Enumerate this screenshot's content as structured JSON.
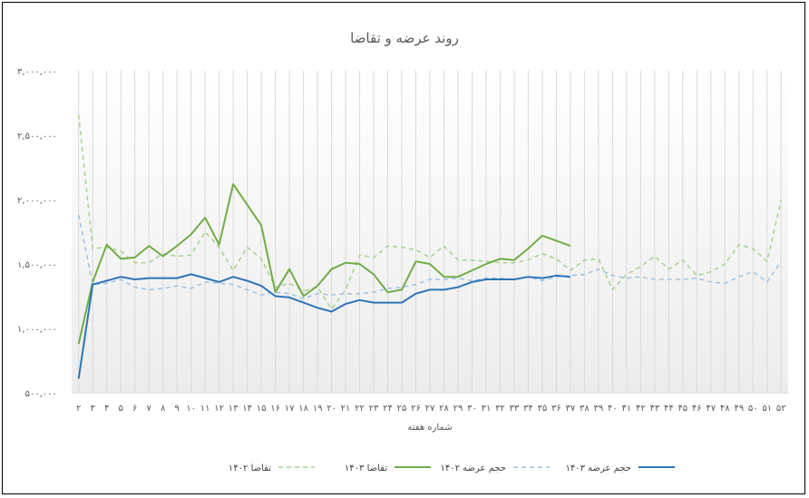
{
  "chart_data": {
    "type": "line",
    "title": "روند عرضه و تقاضا",
    "xlabel": "شماره هفته",
    "ylabel": "",
    "ylim": [
      500000,
      3000000
    ],
    "y_ticks": [
      "۵۰۰,۰۰۰",
      "۱,۰۰۰,۰۰۰",
      "۱,۵۰۰,۰۰۰",
      "۲,۰۰۰,۰۰۰",
      "۲,۵۰۰,۰۰۰",
      "۳,۰۰۰,۰۰۰"
    ],
    "y_tick_values": [
      500000,
      1000000,
      1500000,
      2000000,
      2500000,
      3000000
    ],
    "x": [
      "۲",
      "۳",
      "۴",
      "۵",
      "۶",
      "۷",
      "۸",
      "۹",
      "۱۰",
      "۱۱",
      "۱۲",
      "۱۳",
      "۱۴",
      "۱۵",
      "۱۶",
      "۱۷",
      "۱۸",
      "۱۹",
      "۲۰",
      "۲۱",
      "۲۲",
      "۲۳",
      "۲۴",
      "۲۵",
      "۲۶",
      "۲۷",
      "۲۸",
      "۲۹",
      "۳۰",
      "۳۱",
      "۳۲",
      "۳۳",
      "۳۴",
      "۳۵",
      "۳۶",
      "۳۷",
      "۳۸",
      "۳۹",
      "۴۰",
      "۴۱",
      "۴۲",
      "۴۳",
      "۴۴",
      "۴۵",
      "۴۶",
      "۴۷",
      "۴۸",
      "۴۹",
      "۵۰",
      "۵۱",
      "۵۲"
    ],
    "grid": "vertical",
    "legend_position": "bottom",
    "series": [
      {
        "name": "تقاضا ۱۴۰۲",
        "color": "#A9D18E",
        "dash": "dashed",
        "values": [
          2660000,
          1620000,
          1630000,
          1600000,
          1510000,
          1510000,
          1580000,
          1560000,
          1570000,
          1750000,
          1630000,
          1450000,
          1630000,
          1540000,
          1320000,
          1350000,
          1290000,
          1320000,
          1150000,
          1300000,
          1570000,
          1550000,
          1640000,
          1630000,
          1610000,
          1550000,
          1640000,
          1530000,
          1530000,
          1520000,
          1510000,
          1510000,
          1530000,
          1580000,
          1540000,
          1450000,
          1530000,
          1540000,
          1300000,
          1420000,
          1480000,
          1560000,
          1460000,
          1530000,
          1410000,
          1440000,
          1500000,
          1650000,
          1620000,
          1520000,
          2000000
        ]
      },
      {
        "name": "تقاضا ۱۴۰۳",
        "color": "#70AD47",
        "dash": "solid",
        "values": [
          880000,
          1360000,
          1650000,
          1540000,
          1550000,
          1640000,
          1560000,
          1640000,
          1730000,
          1860000,
          1650000,
          2120000,
          1960000,
          1800000,
          1280000,
          1460000,
          1250000,
          1330000,
          1460000,
          1510000,
          1500000,
          1420000,
          1280000,
          1300000,
          1520000,
          1500000,
          1400000,
          1400000,
          1450000,
          1500000,
          1540000,
          1530000,
          1620000,
          1720000,
          1680000,
          1640000,
          null,
          null,
          null,
          null,
          null,
          null,
          null,
          null,
          null,
          null,
          null,
          null,
          null,
          null,
          null
        ]
      },
      {
        "name": "حجم عرضه ۱۴۰۲",
        "color": "#9DC3E6",
        "dash": "dashed",
        "values": [
          1880000,
          1340000,
          1350000,
          1380000,
          1320000,
          1300000,
          1310000,
          1330000,
          1310000,
          1360000,
          1350000,
          1340000,
          1300000,
          1260000,
          1280000,
          1270000,
          1230000,
          1270000,
          1260000,
          1270000,
          1270000,
          1280000,
          1310000,
          1320000,
          1340000,
          1380000,
          1380000,
          1390000,
          1370000,
          1390000,
          1390000,
          1380000,
          1400000,
          1370000,
          1400000,
          1410000,
          1420000,
          1460000,
          1410000,
          1390000,
          1400000,
          1380000,
          1380000,
          1380000,
          1390000,
          1360000,
          1350000,
          1400000,
          1440000,
          1360000,
          1520000
        ]
      },
      {
        "name": "حجم عرضه ۱۴۰۳",
        "color": "#2E75B6",
        "dash": "solid",
        "values": [
          610000,
          1340000,
          1370000,
          1400000,
          1380000,
          1390000,
          1390000,
          1390000,
          1420000,
          1390000,
          1360000,
          1400000,
          1370000,
          1330000,
          1250000,
          1240000,
          1200000,
          1160000,
          1130000,
          1190000,
          1220000,
          1200000,
          1200000,
          1200000,
          1270000,
          1300000,
          1300000,
          1320000,
          1360000,
          1380000,
          1380000,
          1380000,
          1400000,
          1390000,
          1410000,
          1400000,
          null,
          null,
          null,
          null,
          null,
          null,
          null,
          null,
          null,
          null,
          null,
          null,
          null,
          null,
          null
        ]
      }
    ]
  }
}
